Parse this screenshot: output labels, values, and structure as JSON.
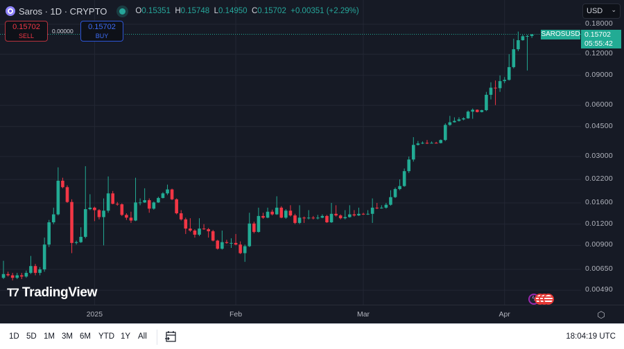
{
  "header": {
    "symbol_title": "Saros · 1D · CRYPTO",
    "ohlc": {
      "o_label": "O",
      "o": "0.15351",
      "h_label": "H",
      "h": "0.15748",
      "l_label": "L",
      "l": "0.14950",
      "c_label": "C",
      "c": "0.15702",
      "change": "+0.00351 (+2.29%)"
    }
  },
  "trade": {
    "sell_price": "0.15702",
    "sell_label": "SELL",
    "spread": "0.00000",
    "buy_price": "0.15702",
    "buy_label": "BUY"
  },
  "currency": {
    "selected": "USD"
  },
  "last_price": {
    "symbol": "SAROSUSD",
    "price": "0.15702",
    "countdown": "05:55:42"
  },
  "logo": {
    "text": "TradingView"
  },
  "bottom_bar": {
    "ranges": [
      "1D",
      "5D",
      "1M",
      "3M",
      "6M",
      "YTD",
      "1Y",
      "All"
    ],
    "time": "18:04:19 UTC"
  },
  "colors": {
    "up": "#22ab94",
    "down": "#f23645",
    "background": "#161a25",
    "grid": "#232734"
  },
  "icons": [
    "symbol-logo-icon",
    "live-dot-icon",
    "chevron-down-icon",
    "settings-icon",
    "calendar-goto-icon",
    "lightning-event-icon",
    "us-flag-event-icon"
  ],
  "chart_data": {
    "type": "candlestick",
    "symbol": "SAROSUSD",
    "interval": "1D",
    "y_scale": "log",
    "ylim": [
      0.0049,
      0.18
    ],
    "y_ticks": [
      "0.18000",
      "0.12000",
      "0.09000",
      "0.06000",
      "0.04500",
      "0.03000",
      "0.02200",
      "0.01600",
      "0.01200",
      "0.00900",
      "0.00650",
      "0.00490"
    ],
    "y_tick_values": [
      0.18,
      0.12,
      0.09,
      0.06,
      0.045,
      0.03,
      0.022,
      0.016,
      0.012,
      0.009,
      0.0065,
      0.0049
    ],
    "x_ticks": [
      {
        "label": "2025",
        "date": "2025-01-01"
      },
      {
        "label": "Feb",
        "date": "2025-02-01"
      },
      {
        "label": "Mar",
        "date": "2025-03-01"
      },
      {
        "label": "Apr",
        "date": "2025-04-01"
      }
    ],
    "grid": true,
    "candle_fields": [
      "date",
      "open",
      "high",
      "low",
      "close"
    ],
    "candles": [
      [
        "2024-12-12",
        0.0058,
        0.0073,
        0.0057,
        0.0061
      ],
      [
        "2024-12-13",
        0.0061,
        0.0063,
        0.0059,
        0.006
      ],
      [
        "2024-12-14",
        0.006,
        0.0062,
        0.0056,
        0.0058
      ],
      [
        "2024-12-15",
        0.0058,
        0.0062,
        0.0057,
        0.006
      ],
      [
        "2024-12-16",
        0.006,
        0.0062,
        0.0057,
        0.0059
      ],
      [
        "2024-12-17",
        0.0059,
        0.0064,
        0.0058,
        0.0062
      ],
      [
        "2024-12-18",
        0.0062,
        0.0078,
        0.0061,
        0.0068
      ],
      [
        "2024-12-19",
        0.0068,
        0.007,
        0.006,
        0.0062
      ],
      [
        "2024-12-20",
        0.0062,
        0.0067,
        0.006,
        0.0065
      ],
      [
        "2024-12-21",
        0.0065,
        0.01,
        0.0063,
        0.0091
      ],
      [
        "2024-12-22",
        0.0091,
        0.0127,
        0.0088,
        0.0123
      ],
      [
        "2024-12-23",
        0.0123,
        0.015,
        0.012,
        0.0137
      ],
      [
        "2024-12-24",
        0.0137,
        0.0259,
        0.0135,
        0.0216
      ],
      [
        "2024-12-25",
        0.0216,
        0.0225,
        0.0195,
        0.0198
      ],
      [
        "2024-12-26",
        0.0198,
        0.0203,
        0.016,
        0.0162
      ],
      [
        "2024-12-27",
        0.0162,
        0.0168,
        0.0081,
        0.0093
      ],
      [
        "2024-12-28",
        0.0093,
        0.0096,
        0.0091,
        0.0094
      ],
      [
        "2024-12-29",
        0.0094,
        0.0115,
        0.0093,
        0.0101
      ],
      [
        "2024-12-30",
        0.0101,
        0.0263,
        0.0099,
        0.0147
      ],
      [
        "2024-12-31",
        0.0147,
        0.018,
        0.0145,
        0.015
      ],
      [
        "2025-01-01",
        0.015,
        0.0152,
        0.0125,
        0.0145
      ],
      [
        "2025-01-02",
        0.0145,
        0.0147,
        0.0128,
        0.0132
      ],
      [
        "2025-01-03",
        0.0132,
        0.017,
        0.009,
        0.0144
      ],
      [
        "2025-01-04",
        0.0144,
        0.0229,
        0.014,
        0.0182
      ],
      [
        "2025-01-05",
        0.0182,
        0.0188,
        0.0157,
        0.0158
      ],
      [
        "2025-01-06",
        0.0158,
        0.0162,
        0.0154,
        0.0157
      ],
      [
        "2025-01-07",
        0.0157,
        0.0159,
        0.0134,
        0.0136
      ],
      [
        "2025-01-08",
        0.0136,
        0.0139,
        0.0127,
        0.0131
      ],
      [
        "2025-01-09",
        0.0131,
        0.0142,
        0.0122,
        0.0126
      ],
      [
        "2025-01-10",
        0.0126,
        0.0225,
        0.0125,
        0.0161
      ],
      [
        "2025-01-11",
        0.0161,
        0.017,
        0.0155,
        0.0161
      ],
      [
        "2025-01-12",
        0.0161,
        0.0195,
        0.016,
        0.0166
      ],
      [
        "2025-01-13",
        0.0166,
        0.017,
        0.014,
        0.0148
      ],
      [
        "2025-01-14",
        0.0148,
        0.0163,
        0.0146,
        0.0161
      ],
      [
        "2025-01-15",
        0.0161,
        0.0174,
        0.016,
        0.0171
      ],
      [
        "2025-01-16",
        0.0171,
        0.0185,
        0.017,
        0.0182
      ],
      [
        "2025-01-17",
        0.0182,
        0.0205,
        0.0178,
        0.0192
      ],
      [
        "2025-01-18",
        0.0192,
        0.0194,
        0.0166,
        0.0168
      ],
      [
        "2025-01-19",
        0.0168,
        0.017,
        0.0137,
        0.0139
      ],
      [
        "2025-01-20",
        0.0139,
        0.0145,
        0.0126,
        0.0128
      ],
      [
        "2025-01-21",
        0.0128,
        0.0131,
        0.0105,
        0.0113
      ],
      [
        "2025-01-22",
        0.0113,
        0.013,
        0.0108,
        0.011
      ],
      [
        "2025-01-23",
        0.011,
        0.0112,
        0.01,
        0.0104
      ],
      [
        "2025-01-24",
        0.0104,
        0.013,
        0.0102,
        0.0113
      ],
      [
        "2025-01-25",
        0.0113,
        0.012,
        0.0111,
        0.0112
      ],
      [
        "2025-01-26",
        0.0112,
        0.0114,
        0.01,
        0.0109
      ],
      [
        "2025-01-27",
        0.0109,
        0.0111,
        0.0095,
        0.0096
      ],
      [
        "2025-01-28",
        0.0096,
        0.0097,
        0.0085,
        0.0086
      ],
      [
        "2025-01-29",
        0.0086,
        0.011,
        0.0085,
        0.0094
      ],
      [
        "2025-01-30",
        0.0094,
        0.0097,
        0.0092,
        0.0093
      ],
      [
        "2025-01-31",
        0.0093,
        0.0099,
        0.0087,
        0.0093
      ],
      [
        "2025-02-01",
        0.0093,
        0.0105,
        0.009,
        0.0091
      ],
      [
        "2025-02-02",
        0.0091,
        0.0095,
        0.008,
        0.0081
      ],
      [
        "2025-02-03",
        0.0081,
        0.0091,
        0.0072,
        0.0089
      ],
      [
        "2025-02-04",
        0.0089,
        0.014,
        0.0088,
        0.0121
      ],
      [
        "2025-02-05",
        0.0121,
        0.0124,
        0.0106,
        0.0108
      ],
      [
        "2025-02-06",
        0.0108,
        0.015,
        0.0107,
        0.0134
      ],
      [
        "2025-02-07",
        0.0134,
        0.014,
        0.0129,
        0.0131
      ],
      [
        "2025-02-08",
        0.0131,
        0.015,
        0.013,
        0.0142
      ],
      [
        "2025-02-09",
        0.0142,
        0.0146,
        0.0135,
        0.0137
      ],
      [
        "2025-02-10",
        0.0137,
        0.0175,
        0.0136,
        0.015
      ],
      [
        "2025-02-11",
        0.015,
        0.0153,
        0.013,
        0.0131
      ],
      [
        "2025-02-12",
        0.0131,
        0.0147,
        0.0129,
        0.0144
      ],
      [
        "2025-02-13",
        0.0144,
        0.0155,
        0.0133,
        0.0135
      ],
      [
        "2025-02-14",
        0.0135,
        0.0138,
        0.012,
        0.0122
      ],
      [
        "2025-02-15",
        0.0122,
        0.0155,
        0.012,
        0.0131
      ],
      [
        "2025-02-16",
        0.0131,
        0.0133,
        0.0122,
        0.013
      ],
      [
        "2025-02-17",
        0.013,
        0.0145,
        0.0128,
        0.0131
      ],
      [
        "2025-02-18",
        0.0131,
        0.0134,
        0.0128,
        0.013
      ],
      [
        "2025-02-19",
        0.013,
        0.0136,
        0.0128,
        0.0131
      ],
      [
        "2025-02-20",
        0.0131,
        0.0137,
        0.013,
        0.0134
      ],
      [
        "2025-02-21",
        0.0134,
        0.0136,
        0.0122,
        0.0123
      ],
      [
        "2025-02-22",
        0.0123,
        0.016,
        0.0122,
        0.0138
      ],
      [
        "2025-02-23",
        0.0138,
        0.0155,
        0.0133,
        0.0135
      ],
      [
        "2025-02-24",
        0.0135,
        0.0137,
        0.0128,
        0.013
      ],
      [
        "2025-02-25",
        0.013,
        0.0145,
        0.0128,
        0.0132
      ],
      [
        "2025-02-26",
        0.0132,
        0.0155,
        0.0131,
        0.0137
      ],
      [
        "2025-02-27",
        0.0137,
        0.0145,
        0.0133,
        0.0135
      ],
      [
        "2025-02-28",
        0.0135,
        0.015,
        0.0134,
        0.0138
      ],
      [
        "2025-03-01",
        0.0138,
        0.014,
        0.0136,
        0.0137
      ],
      [
        "2025-03-02",
        0.0137,
        0.0145,
        0.0136,
        0.0138
      ],
      [
        "2025-03-03",
        0.0138,
        0.017,
        0.0122,
        0.015
      ],
      [
        "2025-03-04",
        0.015,
        0.016,
        0.0147,
        0.0149
      ],
      [
        "2025-03-05",
        0.0149,
        0.0155,
        0.0148,
        0.015
      ],
      [
        "2025-03-06",
        0.015,
        0.016,
        0.0148,
        0.0156
      ],
      [
        "2025-03-07",
        0.0156,
        0.019,
        0.0154,
        0.0173
      ],
      [
        "2025-03-08",
        0.0173,
        0.0197,
        0.0171,
        0.0193
      ],
      [
        "2025-03-09",
        0.0193,
        0.022,
        0.019,
        0.0201
      ],
      [
        "2025-03-10",
        0.0201,
        0.0255,
        0.0199,
        0.0246
      ],
      [
        "2025-03-11",
        0.0246,
        0.03,
        0.024,
        0.0288
      ],
      [
        "2025-03-12",
        0.0288,
        0.039,
        0.028,
        0.0351
      ],
      [
        "2025-03-13",
        0.0351,
        0.037,
        0.0348,
        0.0358
      ],
      [
        "2025-03-14",
        0.0358,
        0.0368,
        0.0355,
        0.0361
      ],
      [
        "2025-03-15",
        0.0361,
        0.0375,
        0.0355,
        0.036
      ],
      [
        "2025-03-16",
        0.036,
        0.0368,
        0.0358,
        0.0361
      ],
      [
        "2025-03-17",
        0.0361,
        0.0366,
        0.0358,
        0.036
      ],
      [
        "2025-03-18",
        0.036,
        0.0378,
        0.0358,
        0.0375
      ],
      [
        "2025-03-19",
        0.0375,
        0.047,
        0.037,
        0.046
      ],
      [
        "2025-03-20",
        0.046,
        0.052,
        0.0455,
        0.0477
      ],
      [
        "2025-03-21",
        0.0477,
        0.051,
        0.0475,
        0.0486
      ],
      [
        "2025-03-22",
        0.0486,
        0.051,
        0.0482,
        0.0496
      ],
      [
        "2025-03-23",
        0.0496,
        0.051,
        0.049,
        0.0503
      ],
      [
        "2025-03-24",
        0.0503,
        0.056,
        0.05,
        0.0551
      ],
      [
        "2025-03-25",
        0.0551,
        0.0575,
        0.05,
        0.0565
      ],
      [
        "2025-03-26",
        0.0565,
        0.0568,
        0.0545,
        0.0548
      ],
      [
        "2025-03-27",
        0.0548,
        0.0565,
        0.0545,
        0.0562
      ],
      [
        "2025-03-28",
        0.0562,
        0.072,
        0.0555,
        0.0692
      ],
      [
        "2025-03-29",
        0.0692,
        0.082,
        0.065,
        0.0762
      ],
      [
        "2025-03-30",
        0.0762,
        0.084,
        0.0602,
        0.0757
      ],
      [
        "2025-03-31",
        0.0757,
        0.09,
        0.072,
        0.0833
      ],
      [
        "2025-04-01",
        0.0833,
        0.088,
        0.081,
        0.0847
      ],
      [
        "2025-04-02",
        0.0847,
        0.12,
        0.084,
        0.1007
      ],
      [
        "2025-04-03",
        0.1007,
        0.148,
        0.099,
        0.1283
      ],
      [
        "2025-04-04",
        0.1283,
        0.163,
        0.125,
        0.145
      ],
      [
        "2025-04-05",
        0.145,
        0.156,
        0.144,
        0.153
      ],
      [
        "2025-04-06",
        0.153,
        0.156,
        0.0962,
        0.1535
      ],
      [
        "2025-04-07",
        0.15351,
        0.15748,
        0.1495,
        0.15702
      ]
    ]
  }
}
